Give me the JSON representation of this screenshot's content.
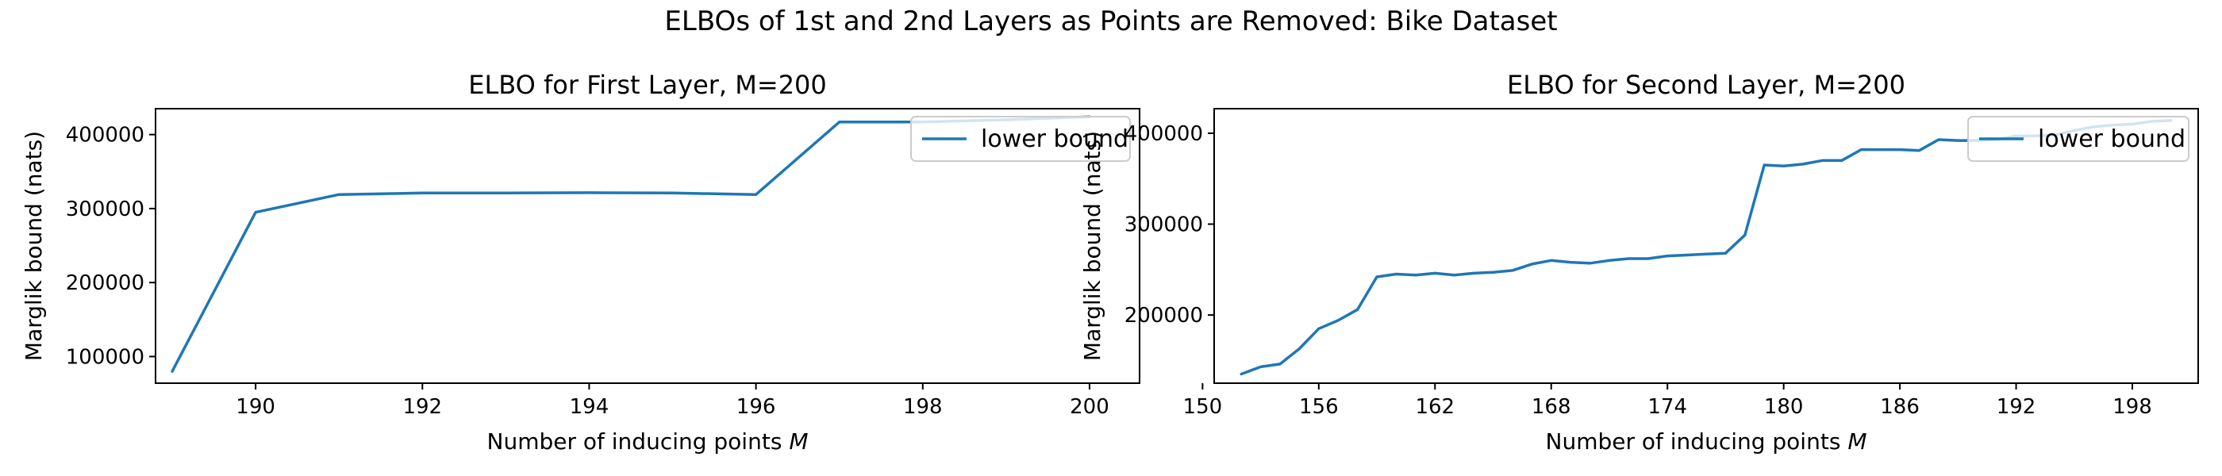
{
  "suptitle": "ELBOs of 1st and 2nd Layers as Points are Removed: Bike Dataset",
  "chart_data": [
    {
      "type": "line",
      "title": "ELBO for First Layer, M=200",
      "xlabel": "Number of inducing points M",
      "ylabel": "Marglik bound (nats)",
      "xlim": [
        188.8,
        200.6
      ],
      "ylim": [
        64000,
        435000
      ],
      "xticks": [
        190,
        192,
        194,
        196,
        198,
        200
      ],
      "yticks": [
        100000,
        200000,
        300000,
        400000
      ],
      "legend": "upper right",
      "grid": false,
      "series": [
        {
          "name": "lower bound",
          "x": [
            189,
            190,
            191,
            192,
            193,
            194,
            195,
            196,
            197,
            198,
            199,
            200
          ],
          "y": [
            80000,
            295000,
            319000,
            321000,
            321000,
            321500,
            321000,
            319000,
            417000,
            417000,
            420000,
            424000
          ]
        }
      ]
    },
    {
      "type": "line",
      "title": "ELBO for Second Layer,  M=200",
      "xlabel": "Number of inducing points M",
      "ylabel": "Marglik bound (nats)",
      "xlim": [
        150.6,
        201.4
      ],
      "ylim": [
        125000,
        427000
      ],
      "xticks": [
        150,
        156,
        162,
        168,
        174,
        180,
        186,
        192,
        198
      ],
      "yticks": [
        200000,
        300000,
        400000
      ],
      "legend": "upper right",
      "grid": false,
      "series": [
        {
          "name": "lower bound",
          "x": [
            152,
            153,
            154,
            155,
            156,
            157,
            158,
            159,
            160,
            161,
            162,
            163,
            164,
            165,
            166,
            167,
            168,
            169,
            170,
            171,
            172,
            173,
            174,
            175,
            176,
            177,
            178,
            179,
            180,
            181,
            182,
            183,
            184,
            185,
            186,
            187,
            188,
            189,
            190,
            191,
            192,
            193,
            194,
            195,
            196,
            197,
            198,
            199,
            200
          ],
          "y": [
            135000,
            143000,
            146000,
            163000,
            185000,
            194000,
            206000,
            242000,
            245000,
            244000,
            246000,
            244000,
            246000,
            247000,
            249000,
            256000,
            260000,
            258000,
            257000,
            260000,
            262000,
            262000,
            265000,
            266000,
            267000,
            268000,
            288000,
            365000,
            364000,
            366000,
            370000,
            370000,
            382000,
            382000,
            382000,
            381000,
            393000,
            392000,
            392000,
            393000,
            397000,
            397000,
            398000,
            403000,
            407000,
            409000,
            410000,
            413000,
            414000
          ]
        }
      ]
    }
  ]
}
